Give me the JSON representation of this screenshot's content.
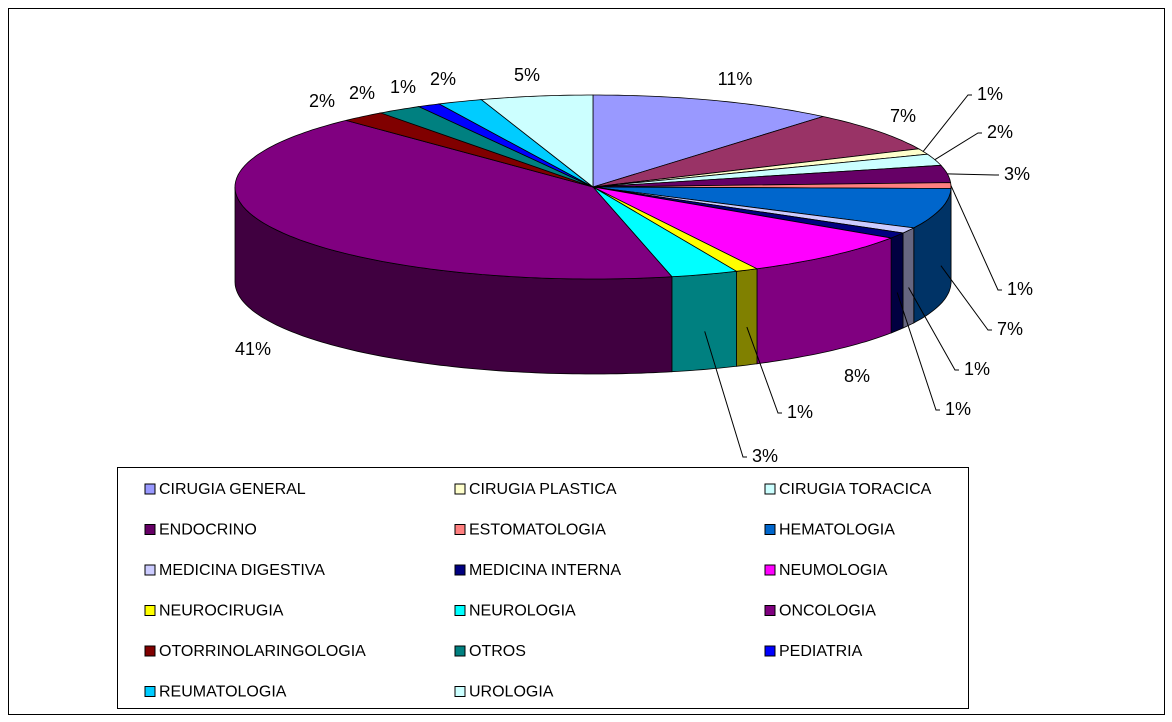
{
  "chart_data": {
    "type": "pie",
    "categories": [
      "CIRUGIA GENERAL",
      null,
      "CIRUGIA PLASTICA",
      "CIRUGIA TORACICA",
      "ENDOCRINO",
      "ESTOMATOLOGIA",
      "HEMATOLOGIA",
      "MEDICINA DIGESTIVA",
      "MEDICINA INTERNA",
      "NEUMOLOGIA",
      "NEUROCIRUGIA",
      "NEUROLOGIA",
      "ONCOLOGIA",
      "OTORRINOLARINGOLOGIA",
      "OTROS",
      "PEDIATRIA",
      "REUMATOLOGIA",
      "UROLOGIA"
    ],
    "values": [
      11,
      7,
      1,
      2,
      3,
      1,
      7,
      1,
      1,
      8,
      1,
      3,
      41,
      2,
      2,
      1,
      2,
      5
    ],
    "value_labels": [
      "11%",
      "7%",
      "1%",
      "2%",
      "3%",
      "1%",
      "7%",
      "1%",
      "1%",
      "8%",
      "1%",
      "3%",
      "41%",
      "2%",
      "2%",
      "1%",
      "2%",
      "5%"
    ],
    "colors": [
      "#9999ff",
      "#993366",
      "#ffffcc",
      "#ccffff",
      "#660066",
      "#ff8080",
      "#0066cc",
      "#ccccff",
      "#000080",
      "#ff00ff",
      "#ffff00",
      "#00ffff",
      "#800080",
      "#800000",
      "#008080",
      "#0000ff",
      "#00ccff",
      "#ccffff"
    ],
    "three_d": true
  }
}
